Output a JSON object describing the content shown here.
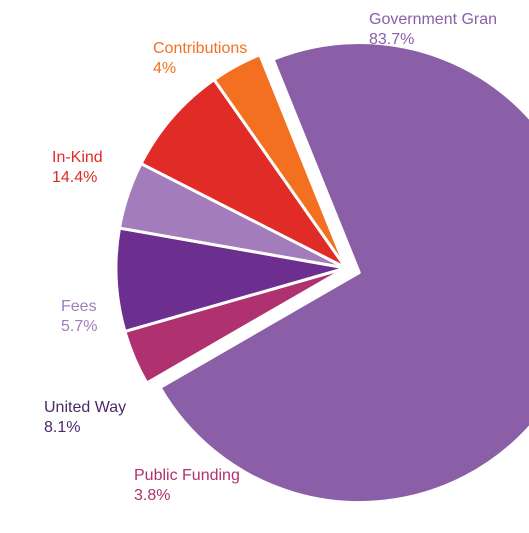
{
  "chart_data": {
    "type": "pie",
    "title": "",
    "slices": [
      {
        "name": "Government Grants",
        "label": "Government Gran",
        "value_label": "83.7%",
        "value": 83.7,
        "color": "#8b5fa8"
      },
      {
        "name": "Public Funding",
        "label": "Public Funding",
        "value_label": "3.8%",
        "value": 3.8,
        "color": "#b0316f"
      },
      {
        "name": "United Way",
        "label": "United Way",
        "value_label": "8.1%",
        "value": 8.1,
        "color": "#6c2f8f"
      },
      {
        "name": "Fees",
        "label": "Fees",
        "value_label": "5.7%",
        "value": 5.7,
        "color": "#a27cbb"
      },
      {
        "name": "In-Kind",
        "label": "In-Kind",
        "value_label": "14.4%",
        "value": 14.4,
        "color": "#e02b27"
      },
      {
        "name": "Contributions",
        "label": "Contributions",
        "value_label": "4%",
        "value": 4,
        "color": "#f37021"
      }
    ],
    "label_colors": {
      "Government Grants": "#8b5fa8",
      "Public Funding": "#b0316f",
      "United Way": "#4a2a6a",
      "Fees": "#a27cbb",
      "In-Kind": "#e02b27",
      "Contributions": "#f37021"
    },
    "legend": "none",
    "grid": false
  }
}
